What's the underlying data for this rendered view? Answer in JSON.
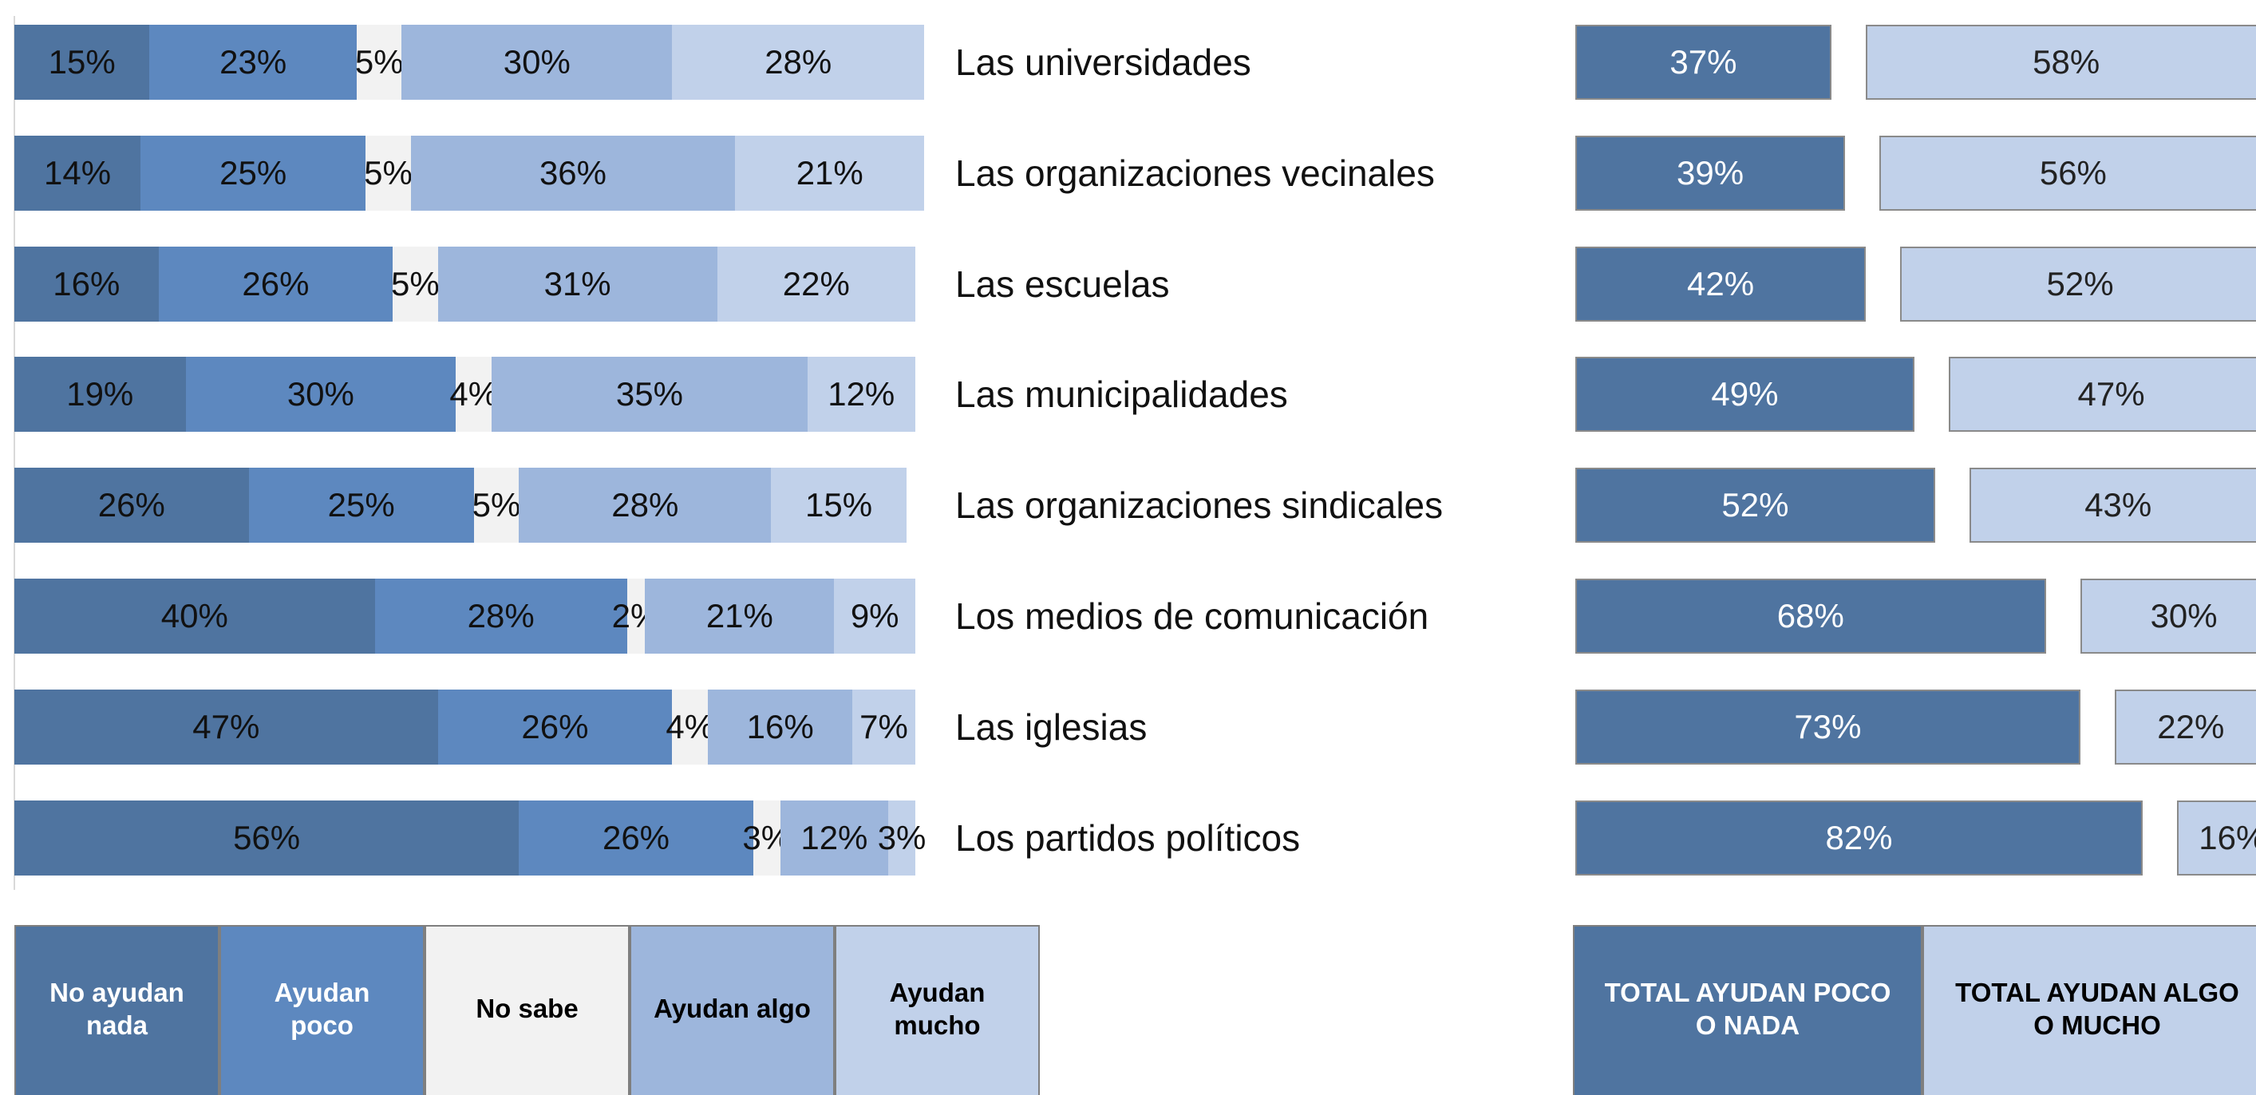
{
  "chart_data": [
    {
      "type": "stacked-bar-horizontal",
      "categories": [
        "Las universidades",
        "Las organizaciones vecinales",
        "Las escuelas",
        "Las municipalidades",
        "Las organizaciones sindicales",
        "Los medios de comunicación",
        "Las iglesias",
        "Los partidos políticos"
      ],
      "series": [
        {
          "name": "No ayudan nada",
          "color": "#4f74a0",
          "values": [
            15,
            14,
            16,
            19,
            26,
            40,
            47,
            56
          ],
          "value_labels": [
            "15%",
            "14%",
            "16%",
            "19%",
            "26%",
            "40%",
            "47%",
            "56%"
          ]
        },
        {
          "name": "Ayudan poco",
          "color": "#5d88bf",
          "values": [
            23,
            25,
            26,
            30,
            25,
            28,
            26,
            26
          ],
          "value_labels": [
            "23%",
            "25%",
            "26%",
            "30%",
            "25%",
            "28%",
            "26%",
            "26%"
          ]
        },
        {
          "name": "No sabe",
          "color": "#f2f2f2",
          "values": [
            5,
            5,
            5,
            4,
            5,
            2,
            4,
            3
          ],
          "value_labels": [
            "5%",
            "5%",
            "5%",
            "4%",
            "5%",
            "2%",
            "4%",
            "3%"
          ]
        },
        {
          "name": "Ayudan algo",
          "color": "#9db6dc",
          "values": [
            30,
            36,
            31,
            35,
            28,
            21,
            16,
            12
          ],
          "value_labels": [
            "30%",
            "36%",
            "31%",
            "35%",
            "28%",
            "21%",
            "16%",
            "12%"
          ]
        },
        {
          "name": "Ayudan mucho",
          "color": "#c1d1ea",
          "values": [
            28,
            21,
            22,
            12,
            15,
            9,
            7,
            3
          ],
          "value_labels": [
            "28%",
            "21%",
            "22%",
            "12%",
            "15%",
            "9%",
            "7%",
            "3%"
          ]
        }
      ]
    },
    {
      "type": "paired-bar-horizontal",
      "series": [
        {
          "name": "TOTAL AYUDAN POCO O NADA",
          "color": "#4f74a0",
          "values": [
            37,
            39,
            42,
            49,
            52,
            68,
            73,
            82
          ],
          "value_labels": [
            "37%",
            "39%",
            "42%",
            "49%",
            "52%",
            "68%",
            "73%",
            "82%"
          ]
        },
        {
          "name": "TOTAL  AYUDAN ALGO O MUCHO",
          "color": "#c1d1ea",
          "values": [
            58,
            56,
            52,
            47,
            43,
            30,
            22,
            16
          ],
          "value_labels": [
            "58%",
            "56%",
            "52%",
            "47%",
            "43%",
            "30%",
            "22%",
            "16%"
          ]
        }
      ]
    }
  ]
}
